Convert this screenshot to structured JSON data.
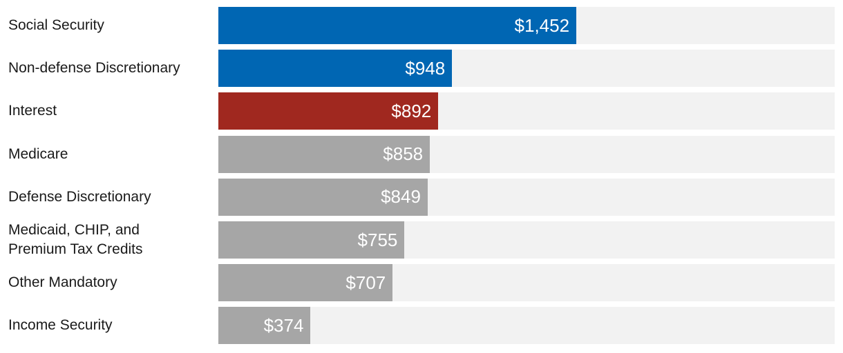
{
  "chart_data": {
    "type": "bar",
    "orientation": "horizontal",
    "categories": [
      "Social Security",
      "Non-defense Discretionary",
      "Interest",
      "Medicare",
      "Defense Discretionary",
      "Medicaid, CHIP, and\nPremium Tax Credits",
      "Other Mandatory",
      "Income Security"
    ],
    "values": [
      1452,
      948,
      892,
      858,
      849,
      755,
      707,
      374
    ],
    "value_labels": [
      "$1,452",
      "$948",
      "$892",
      "$858",
      "$849",
      "$755",
      "$707",
      "$374"
    ],
    "bar_colors": [
      "#0066b3",
      "#0066b3",
      "#a0281f",
      "#a6a6a6",
      "#a6a6a6",
      "#a6a6a6",
      "#a6a6a6",
      "#a6a6a6"
    ],
    "track_color": "#f2f2f2",
    "xlim": [
      0,
      2500
    ],
    "grid": false,
    "legend": "none"
  }
}
